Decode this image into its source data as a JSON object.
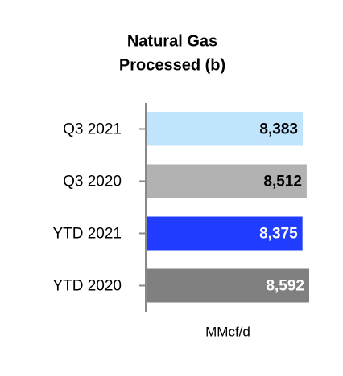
{
  "chart_data": {
    "type": "bar",
    "orientation": "horizontal",
    "title": [
      "Natural Gas",
      "Processed (b)"
    ],
    "categories": [
      "Q3 2021",
      "Q3 2020",
      "YTD 2021",
      "YTD 2020"
    ],
    "values": [
      8383,
      8512,
      8375,
      8592
    ],
    "value_labels": [
      "8,383",
      "8,512",
      "8,375",
      "8,592"
    ],
    "colors": [
      "#bfe4fb",
      "#b2b2b2",
      "#1f3cff",
      "#808080"
    ],
    "xlim": [
      3300,
      8600
    ],
    "x_label": "MMcf/d"
  }
}
